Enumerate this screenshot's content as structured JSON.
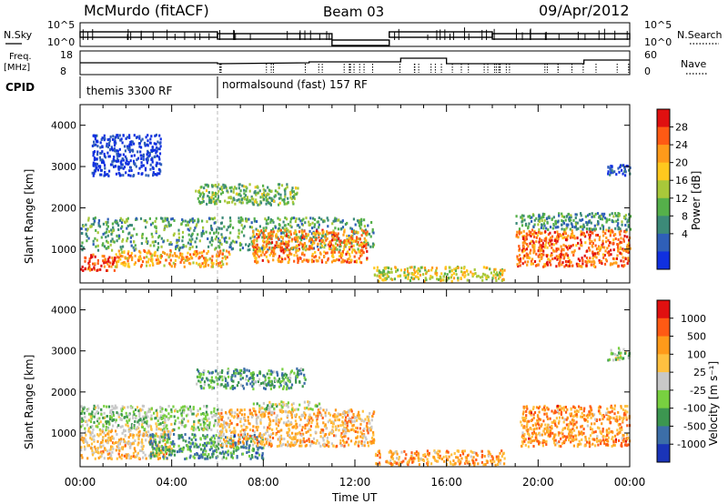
{
  "header": {
    "station": "McMurdo (fitACF)",
    "beam": "Beam 03",
    "date": "09/Apr/2012"
  },
  "summary": {
    "nsky_label": "N.Sky",
    "nsearch_label": "N.Search",
    "freq_label_line1": "Freq.",
    "freq_label_line2": "[MHz]",
    "nave_label": "Nave",
    "cpid_label": "CPID",
    "nsky_ticks": [
      "10^5",
      "10^0"
    ],
    "nsearch_ticks": [
      "10^5",
      "10^0"
    ],
    "freq_ticks": [
      "18",
      "8"
    ],
    "nave_ticks": [
      "60",
      "0"
    ],
    "cpid_segments": [
      {
        "label": "themis 3300 RF",
        "start_hour": 0
      },
      {
        "label": "normalsound (fast) 157 RF",
        "start_hour": 6
      }
    ],
    "nsky_line_color": "#000000",
    "nsearch_line_color": "#000000"
  },
  "chart_data": [
    {
      "type": "heatmap",
      "name": "power",
      "x_range_hours": [
        0,
        24
      ],
      "ylabel": "Slant Range [km]",
      "ylim": [
        180,
        4500
      ],
      "y_ticks": [
        1000,
        2000,
        3000,
        4000
      ],
      "colorbar_label": "Power [dB]",
      "colorbar_ticks": [
        "28",
        "24",
        "20",
        "16",
        "12",
        "8",
        "4"
      ],
      "colors": [
        "#1030e0",
        "#2f5fb8",
        "#3c8a78",
        "#55b04a",
        "#a8c83a",
        "#ffc81e",
        "#ff9a1a",
        "#ff5a14",
        "#e01010"
      ],
      "scatter_regions": [
        {
          "h0": 0.0,
          "h1": 1.5,
          "r0": 500,
          "r1": 900,
          "level": 0.85
        },
        {
          "h0": 1.5,
          "h1": 6.5,
          "r0": 600,
          "r1": 1000,
          "level": 0.7
        },
        {
          "h0": 0.0,
          "h1": 12.8,
          "r0": 1000,
          "r1": 1800,
          "level": 0.35
        },
        {
          "h0": 5.0,
          "h1": 9.5,
          "r0": 2100,
          "r1": 2600,
          "level": 0.4
        },
        {
          "h0": 7.5,
          "h1": 12.5,
          "r0": 700,
          "r1": 1500,
          "level": 0.75
        },
        {
          "h0": 12.8,
          "h1": 18.5,
          "r0": 250,
          "r1": 600,
          "level": 0.55
        },
        {
          "h0": 19.0,
          "h1": 24.0,
          "r0": 600,
          "r1": 1500,
          "level": 0.8
        },
        {
          "h0": 19.0,
          "h1": 24.0,
          "r0": 1500,
          "r1": 1900,
          "level": 0.3
        },
        {
          "h0": 0.5,
          "h1": 3.5,
          "r0": 2800,
          "r1": 3800,
          "level": 0.05
        },
        {
          "h0": 23.0,
          "h1": 24.0,
          "r0": 2800,
          "r1": 3100,
          "level": 0.1
        }
      ]
    },
    {
      "type": "heatmap",
      "name": "velocity",
      "x_range_hours": [
        0,
        24
      ],
      "xlabel": "Time UT",
      "x_tick_labels": [
        "00:00",
        "04:00",
        "08:00",
        "12:00",
        "16:00",
        "20:00",
        "00:00"
      ],
      "ylabel": "Slant Range [km]",
      "ylim": [
        180,
        4500
      ],
      "y_ticks": [
        1000,
        2000,
        3000,
        4000
      ],
      "colorbar_label": "Velocity [m s⁻¹]",
      "colorbar_ticks": [
        "1000",
        "500",
        "100",
        "25",
        "-25",
        "-100",
        "-500",
        "-1000"
      ],
      "colors": [
        "#1a34b8",
        "#3c6ea8",
        "#3c9650",
        "#78d040",
        "#c8c8c8",
        "#ffc040",
        "#ff9a1a",
        "#ff5a14",
        "#e01010"
      ],
      "scatter_regions": [
        {
          "h0": 0.0,
          "h1": 6.0,
          "r0": 1100,
          "r1": 1700,
          "level": 0.42
        },
        {
          "h0": 0.0,
          "h1": 4.0,
          "r0": 400,
          "r1": 1100,
          "level": 0.62
        },
        {
          "h0": 3.0,
          "h1": 8.0,
          "r0": 400,
          "r1": 1000,
          "level": 0.28
        },
        {
          "h0": 6.0,
          "h1": 12.8,
          "r0": 700,
          "r1": 1600,
          "level": 0.65
        },
        {
          "h0": 7.5,
          "h1": 10.5,
          "r0": 1600,
          "r1": 1800,
          "level": 0.45
        },
        {
          "h0": 5.0,
          "h1": 9.8,
          "r0": 2100,
          "r1": 2600,
          "level": 0.3
        },
        {
          "h0": 12.8,
          "h1": 18.5,
          "r0": 250,
          "r1": 600,
          "level": 0.7
        },
        {
          "h0": 19.2,
          "h1": 24.0,
          "r0": 700,
          "r1": 1700,
          "level": 0.72
        },
        {
          "h0": 23.0,
          "h1": 24.0,
          "r0": 2800,
          "r1": 3100,
          "level": 0.42
        }
      ]
    }
  ]
}
